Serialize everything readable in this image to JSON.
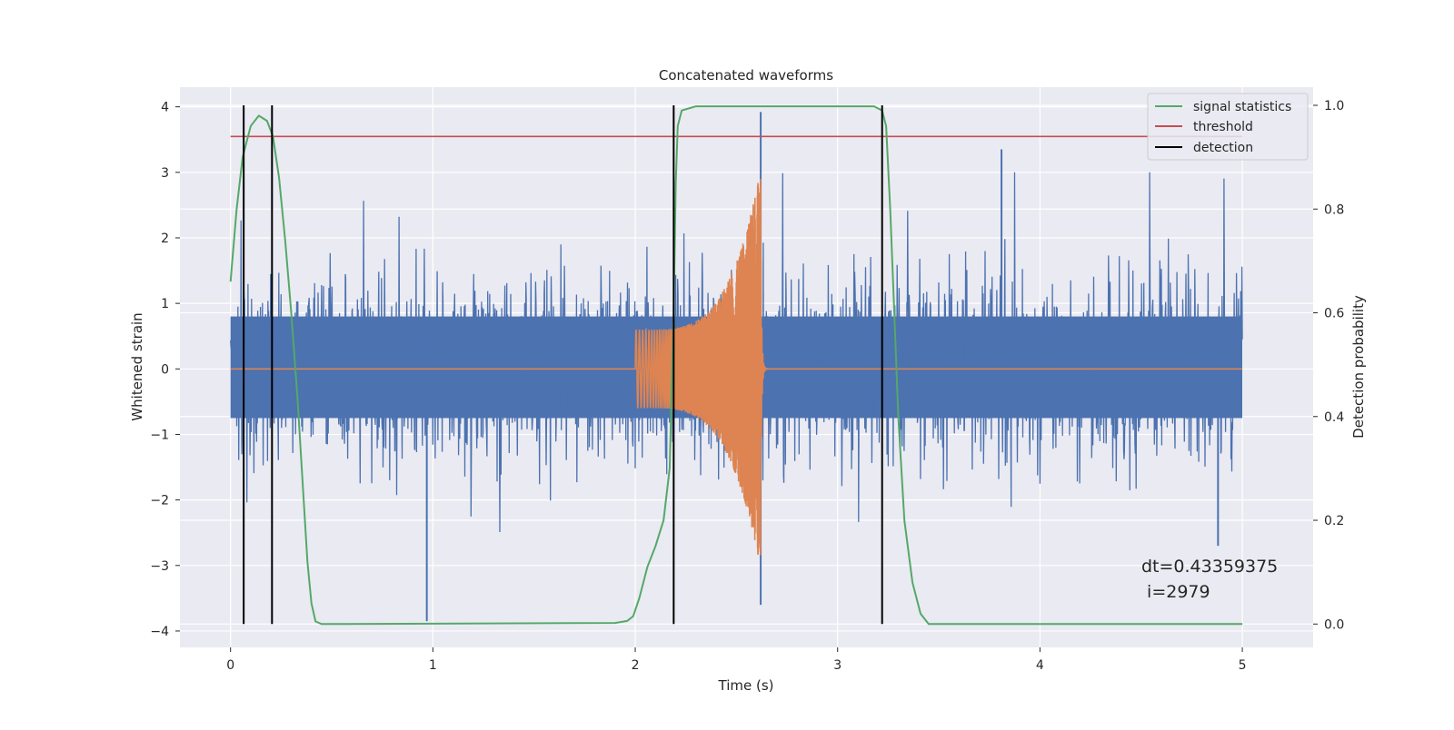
{
  "chart_data": {
    "type": "line",
    "title": "Concatenated waveforms",
    "xlabel": "Time (s)",
    "ylabel_left": "Whitened strain",
    "ylabel_right": "Detection probability",
    "xlim": [
      -0.25,
      5.35
    ],
    "ylim_left": [
      -4.25,
      4.3
    ],
    "ylim_right": [
      -0.045,
      1.035
    ],
    "x_ticks": [
      0,
      1,
      2,
      3,
      4,
      5
    ],
    "y_left_ticks": [
      -4,
      -3,
      -2,
      -1,
      0,
      1,
      2,
      3,
      4
    ],
    "y_right_ticks": [
      0.0,
      0.2,
      0.4,
      0.6,
      0.8,
      1.0
    ],
    "x_tick_labels": [
      "0",
      "1",
      "2",
      "3",
      "4",
      "5"
    ],
    "y_left_tick_labels": [
      "−4",
      "−3",
      "−2",
      "−1",
      "0",
      "1",
      "2",
      "3",
      "4"
    ],
    "y_right_tick_labels": [
      "0.0",
      "0.2",
      "0.4",
      "0.6",
      "0.8",
      "1.0"
    ],
    "grid": true,
    "legend_position": "top-right",
    "legend": [
      {
        "label": "signal statistics",
        "color": "#55a868"
      },
      {
        "label": "threshold",
        "color": "#c44e52"
      },
      {
        "label": "detection",
        "color": "#000000"
      }
    ],
    "series": [
      {
        "key": "strain",
        "axis": "left",
        "color": "#4c72b0",
        "description_visible": "whitened strain noise",
        "t_range": [
          0,
          5
        ],
        "core_envelope": [
          -0.75,
          0.8
        ],
        "spike_peaks": [
          {
            "t": 0.97,
            "y": -3.85
          },
          {
            "t": 2.62,
            "y": 3.92
          },
          {
            "t": 2.62,
            "y": -3.6
          },
          {
            "t": 3.81,
            "y": 3.35
          },
          {
            "t": 4.88,
            "y": -2.7
          }
        ]
      },
      {
        "key": "signal",
        "axis": "left",
        "color": "#dd8452",
        "t_start": 2.0,
        "t_merger": 2.62,
        "amp_start": 0.6,
        "amp_peak": 3.05
      },
      {
        "key": "statistics",
        "axis": "right",
        "color": "#55a868",
        "points": [
          [
            0.0,
            0.66
          ],
          [
            0.03,
            0.8
          ],
          [
            0.06,
            0.9
          ],
          [
            0.1,
            0.96
          ],
          [
            0.14,
            0.98
          ],
          [
            0.18,
            0.97
          ],
          [
            0.21,
            0.94
          ],
          [
            0.24,
            0.86
          ],
          [
            0.27,
            0.74
          ],
          [
            0.3,
            0.6
          ],
          [
            0.33,
            0.44
          ],
          [
            0.36,
            0.25
          ],
          [
            0.38,
            0.12
          ],
          [
            0.4,
            0.04
          ],
          [
            0.42,
            0.005
          ],
          [
            0.45,
            0.0
          ],
          [
            1.9,
            0.002
          ],
          [
            1.96,
            0.006
          ],
          [
            1.99,
            0.015
          ],
          [
            2.02,
            0.05
          ],
          [
            2.06,
            0.11
          ],
          [
            2.1,
            0.15
          ],
          [
            2.14,
            0.2
          ],
          [
            2.17,
            0.3
          ],
          [
            2.19,
            0.6
          ],
          [
            2.2,
            0.85
          ],
          [
            2.21,
            0.96
          ],
          [
            2.23,
            0.99
          ],
          [
            2.3,
            0.998
          ],
          [
            3.18,
            0.998
          ],
          [
            3.22,
            0.99
          ],
          [
            3.24,
            0.96
          ],
          [
            3.26,
            0.8
          ],
          [
            3.28,
            0.6
          ],
          [
            3.3,
            0.4
          ],
          [
            3.33,
            0.2
          ],
          [
            3.37,
            0.08
          ],
          [
            3.41,
            0.02
          ],
          [
            3.45,
            0.0
          ],
          [
            5.0,
            0.0
          ]
        ]
      },
      {
        "key": "threshold",
        "axis": "right",
        "color": "#c44e52",
        "value": 0.94,
        "t_range": [
          0,
          5
        ]
      },
      {
        "key": "detections",
        "axis": "right",
        "color": "#000000",
        "times": [
          0.065,
          0.205,
          2.19,
          3.22
        ],
        "y_range": [
          0.0,
          1.0
        ]
      }
    ],
    "annotation": {
      "line1": "dt=0.43359375",
      "line2": " i=2979"
    }
  }
}
